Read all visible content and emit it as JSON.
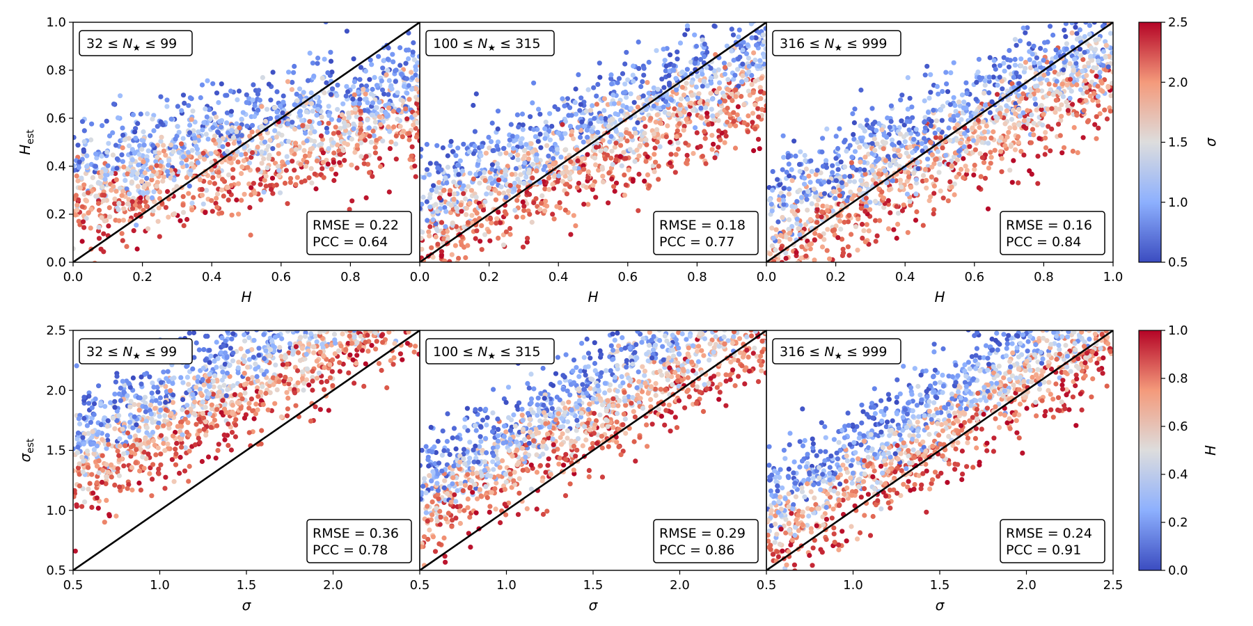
{
  "chart_data": [
    {
      "type": "scatter",
      "row": 0,
      "col": 0,
      "range_label": {
        "lo": "32",
        "hi": "99"
      },
      "xlabel": "H",
      "ylabel": "H",
      "ylabel_sub": "est",
      "xlim": [
        0,
        1
      ],
      "ylim": [
        0,
        1
      ],
      "xticks": [
        "0.0",
        "0.2",
        "0.4",
        "0.6",
        "0.8"
      ],
      "yticks": [
        "0.0",
        "0.2",
        "0.4",
        "0.6",
        "0.8",
        "1.0"
      ],
      "stats": {
        "rmse": "RMSE = 0.22",
        "pcc": "PCC = 0.64"
      },
      "color_variable": "σ",
      "n_points": 1500,
      "estimate_slope": 0.36,
      "estimate_intercept": 0.31
    },
    {
      "type": "scatter",
      "row": 0,
      "col": 1,
      "range_label": {
        "lo": "100",
        "hi": "315"
      },
      "xlabel": "H",
      "xlim": [
        0,
        1
      ],
      "ylim": [
        0,
        1
      ],
      "xticks": [
        "0.0",
        "0.2",
        "0.4",
        "0.6",
        "0.8"
      ],
      "stats": {
        "rmse": "RMSE = 0.18",
        "pcc": "PCC = 0.77"
      },
      "color_variable": "σ",
      "n_points": 1500,
      "estimate_slope": 0.6,
      "estimate_intercept": 0.2
    },
    {
      "type": "scatter",
      "row": 0,
      "col": 2,
      "range_label": {
        "lo": "316",
        "hi": "999"
      },
      "xlabel": "H",
      "xlim": [
        0,
        1
      ],
      "ylim": [
        0,
        1
      ],
      "xticks": [
        "0.0",
        "0.2",
        "0.4",
        "0.6",
        "0.8",
        "1.0"
      ],
      "stats": {
        "rmse": "RMSE = 0.16",
        "pcc": "PCC = 0.84"
      },
      "color_variable": "σ",
      "n_points": 1500,
      "estimate_slope": 0.72,
      "estimate_intercept": 0.14
    },
    {
      "type": "scatter",
      "row": 1,
      "col": 0,
      "range_label": {
        "lo": "32",
        "hi": "99"
      },
      "xlabel": "σ",
      "ylabel": "σ",
      "ylabel_sub": "est",
      "xlim": [
        0.5,
        2.5
      ],
      "ylim": [
        0.5,
        2.5
      ],
      "xticks": [
        "0.5",
        "1.0",
        "1.5",
        "2.0"
      ],
      "yticks": [
        "0.5",
        "1.0",
        "1.5",
        "2.0",
        "2.5"
      ],
      "stats": {
        "rmse": "RMSE = 0.36",
        "pcc": "PCC = 0.78"
      },
      "color_variable": "H",
      "n_points": 1500,
      "estimate_slope": 0.72,
      "estimate_intercept": 0.45
    },
    {
      "type": "scatter",
      "row": 1,
      "col": 1,
      "range_label": {
        "lo": "100",
        "hi": "315"
      },
      "xlabel": "σ",
      "xlim": [
        0.5,
        2.5
      ],
      "ylim": [
        0.5,
        2.5
      ],
      "xticks": [
        "0.5",
        "1.0",
        "1.5",
        "2.0"
      ],
      "stats": {
        "rmse": "RMSE = 0.29",
        "pcc": "PCC = 0.86"
      },
      "color_variable": "H",
      "n_points": 1500,
      "estimate_slope": 0.82,
      "estimate_intercept": 0.28
    },
    {
      "type": "scatter",
      "row": 1,
      "col": 2,
      "range_label": {
        "lo": "316",
        "hi": "999"
      },
      "xlabel": "σ",
      "xlim": [
        0.5,
        2.5
      ],
      "ylim": [
        0.5,
        2.5
      ],
      "xticks": [
        "0.5",
        "1.0",
        "1.5",
        "2.0",
        "2.5"
      ],
      "stats": {
        "rmse": "RMSE = 0.24",
        "pcc": "PCC = 0.91"
      },
      "color_variable": "H",
      "n_points": 1500,
      "estimate_slope": 0.88,
      "estimate_intercept": 0.18
    }
  ],
  "colorbars": [
    {
      "label": "σ",
      "range": [
        0.5,
        2.5
      ],
      "ticks": [
        "0.5",
        "1.0",
        "1.5",
        "2.0",
        "2.5"
      ],
      "colormap": "coolwarm"
    },
    {
      "label": "H",
      "range": [
        0.0,
        1.0
      ],
      "ticks": [
        "0.0",
        "0.2",
        "0.4",
        "0.6",
        "0.8",
        "1.0"
      ],
      "colormap": "coolwarm"
    }
  ],
  "range_symbols": {
    "leq": "≤",
    "n": "N",
    "star": "★"
  },
  "colors": {
    "low": "#3b4cc0",
    "mid": "#dddddd",
    "high": "#b40426",
    "line": "#000000"
  }
}
